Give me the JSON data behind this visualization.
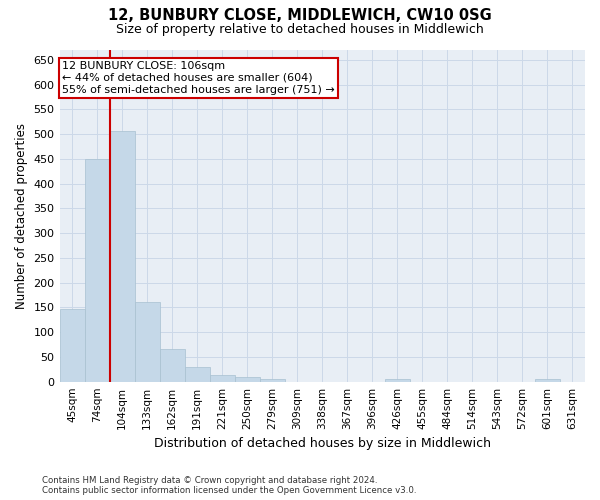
{
  "title": "12, BUNBURY CLOSE, MIDDLEWICH, CW10 0SG",
  "subtitle": "Size of property relative to detached houses in Middlewich",
  "xlabel": "Distribution of detached houses by size in Middlewich",
  "ylabel": "Number of detached properties",
  "categories": [
    "45sqm",
    "74sqm",
    "104sqm",
    "133sqm",
    "162sqm",
    "191sqm",
    "221sqm",
    "250sqm",
    "279sqm",
    "309sqm",
    "338sqm",
    "367sqm",
    "396sqm",
    "426sqm",
    "455sqm",
    "484sqm",
    "514sqm",
    "543sqm",
    "572sqm",
    "601sqm",
    "631sqm"
  ],
  "values": [
    147,
    450,
    507,
    160,
    67,
    30,
    14,
    9,
    5,
    0,
    0,
    0,
    0,
    5,
    0,
    0,
    0,
    0,
    0,
    5,
    0
  ],
  "bar_color": "#c5d8e8",
  "bar_edge_color": "#a8c0d0",
  "vline_x": 1.5,
  "vline_color": "#cc0000",
  "annotation_text": "12 BUNBURY CLOSE: 106sqm\n← 44% of detached houses are smaller (604)\n55% of semi-detached houses are larger (751) →",
  "annotation_box_color": "#ffffff",
  "annotation_box_edgecolor": "#cc0000",
  "ylim": [
    0,
    670
  ],
  "yticks": [
    0,
    50,
    100,
    150,
    200,
    250,
    300,
    350,
    400,
    450,
    500,
    550,
    600,
    650
  ],
  "grid_color": "#ccd8e8",
  "background_color": "#e8eef5",
  "footer": "Contains HM Land Registry data © Crown copyright and database right 2024.\nContains public sector information licensed under the Open Government Licence v3.0.",
  "fig_width": 6.0,
  "fig_height": 5.0,
  "dpi": 100
}
